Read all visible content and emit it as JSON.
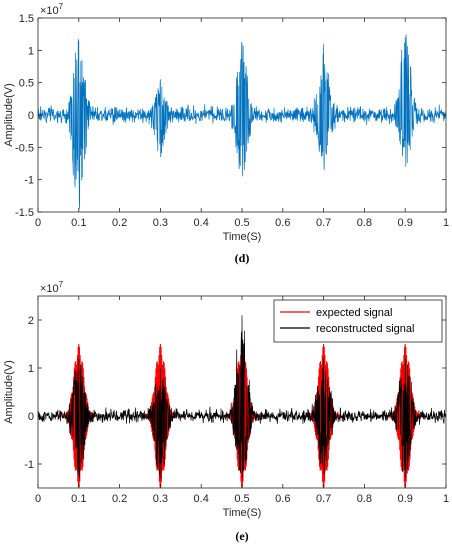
{
  "chart_data": [
    {
      "type": "line",
      "panel_label": "(d)",
      "xlabel": "Time(S)",
      "ylabel": "Amplitude(V)",
      "exponent_label": "×10^7",
      "xlim": [
        0,
        1
      ],
      "ylim": [
        -1.5,
        1.5
      ],
      "xticks": [
        "0",
        "0.1",
        "0.2",
        "0.3",
        "0.4",
        "0.5",
        "0.6",
        "0.7",
        "0.8",
        "0.9",
        "1"
      ],
      "yticks": [
        "-1.5",
        "-1",
        "-0.5",
        "0",
        "0.5",
        "1",
        "1.5"
      ],
      "y_scale_factor": 10000000,
      "series": [
        {
          "color": "#0072BD",
          "description_shape": "noisy oscillation with bursts",
          "bursts": [
            {
              "t": 0.1,
              "peak": 1.15,
              "trough": -1.45
            },
            {
              "t": 0.3,
              "peak": 0.55,
              "trough": -0.6
            },
            {
              "t": 0.5,
              "peak": 1.1,
              "trough": -0.95
            },
            {
              "t": 0.7,
              "peak": 1.1,
              "trough": -0.85
            },
            {
              "t": 0.9,
              "peak": 1.2,
              "trough": -0.8
            }
          ],
          "noise_level": 0.18
        }
      ]
    },
    {
      "type": "line",
      "panel_label": "(e)",
      "xlabel": "Time(S)",
      "ylabel": "Amplitude(V)",
      "exponent_label": "×10^7",
      "xlim": [
        0,
        1
      ],
      "ylim": [
        -1.5,
        2.5
      ],
      "xticks": [
        "0",
        "0.1",
        "0.2",
        "0.3",
        "0.4",
        "0.5",
        "0.6",
        "0.7",
        "0.8",
        "0.9",
        "1"
      ],
      "yticks": [
        "-1",
        "0",
        "1",
        "2"
      ],
      "y_scale_factor": 10000000,
      "legend_position": "top-right",
      "series": [
        {
          "name": "expected signal",
          "color": "#FF0000",
          "bursts": [
            {
              "t": 0.1,
              "amplitude": 1.5
            },
            {
              "t": 0.3,
              "amplitude": 1.5
            },
            {
              "t": 0.5,
              "amplitude": 1.5
            },
            {
              "t": 0.7,
              "amplitude": 1.5
            },
            {
              "t": 0.9,
              "amplitude": 1.5
            }
          ]
        },
        {
          "name": "reconstructed signal",
          "color": "#000000",
          "bursts": [
            {
              "t": 0.1,
              "peak": 1.2,
              "trough": -1.3
            },
            {
              "t": 0.3,
              "peak": 1.0,
              "trough": -1.3
            },
            {
              "t": 0.5,
              "peak": 2.1,
              "trough": -1.3
            },
            {
              "t": 0.7,
              "peak": 1.2,
              "trough": -1.2
            },
            {
              "t": 0.9,
              "peak": 1.2,
              "trough": -1.3
            }
          ],
          "noise_level": 0.2
        }
      ]
    }
  ]
}
